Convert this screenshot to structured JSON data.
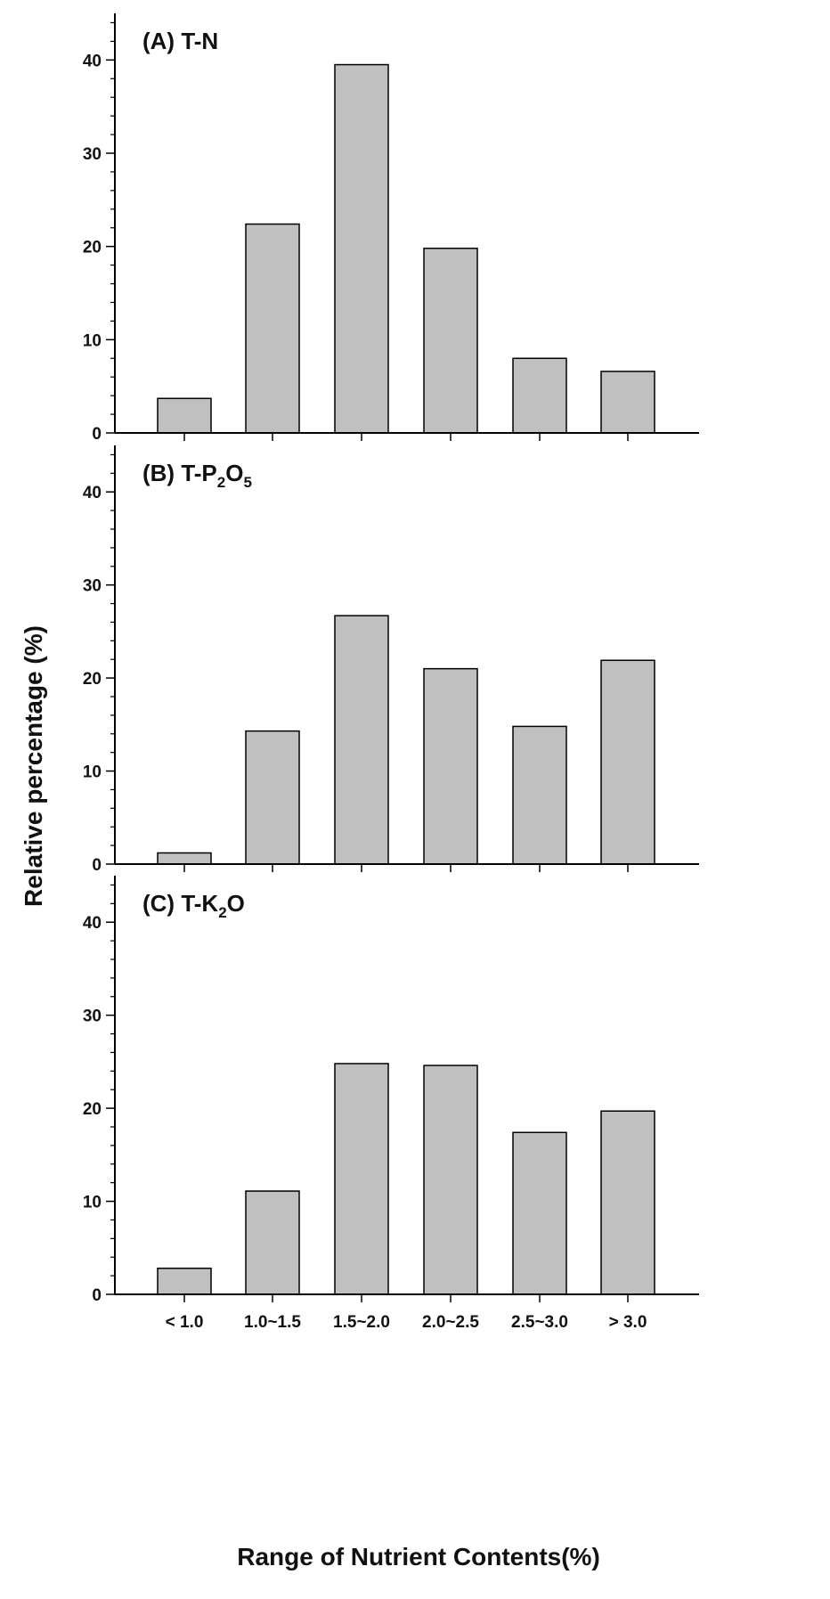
{
  "chart_data": [
    {
      "type": "bar",
      "title": {
        "prefix": "(A) T-N",
        "parts": []
      },
      "categories": [
        "< 1.0",
        "1.0~1.5",
        "1.5~2.0",
        "2.0~2.5",
        "2.5~3.0",
        "> 3.0"
      ],
      "values": [
        3.7,
        22.4,
        39.5,
        19.8,
        8.0,
        6.6
      ],
      "ylim": [
        0,
        45
      ],
      "yticks": [
        "0",
        "10",
        "20",
        "30",
        "40"
      ],
      "show_xtick_labels": false
    },
    {
      "type": "bar",
      "title": {
        "prefix": "(B) T-P",
        "parts": [
          [
            "2",
            "O"
          ],
          [
            "5",
            ""
          ]
        ]
      },
      "categories": [
        "< 1.0",
        "1.0~1.5",
        "1.5~2.0",
        "2.0~2.5",
        "2.5~3.0",
        "> 3.0"
      ],
      "values": [
        1.2,
        14.3,
        26.7,
        21.0,
        14.8,
        21.9
      ],
      "ylim": [
        0,
        45
      ],
      "yticks": [
        "0",
        "10",
        "20",
        "30",
        "40"
      ],
      "show_xtick_labels": false
    },
    {
      "type": "bar",
      "title": {
        "prefix": "(C) T-K",
        "parts": [
          [
            "2",
            "O"
          ]
        ]
      },
      "categories": [
        "< 1.0",
        "1.0~1.5",
        "1.5~2.0",
        "2.0~2.5",
        "2.5~3.0",
        "> 3.0"
      ],
      "values": [
        2.8,
        11.1,
        24.8,
        24.6,
        17.4,
        19.7
      ],
      "ylim": [
        0,
        45
      ],
      "yticks": [
        "0",
        "10",
        "20",
        "30",
        "40"
      ],
      "show_xtick_labels": true
    }
  ],
  "ylabel": "Relative percentage (%)",
  "xlabel": "Range of Nutrient Contents(%)",
  "colors": {
    "bar_fill": "#c0c0c0",
    "bar_stroke": "#000000",
    "axis": "#000000"
  }
}
